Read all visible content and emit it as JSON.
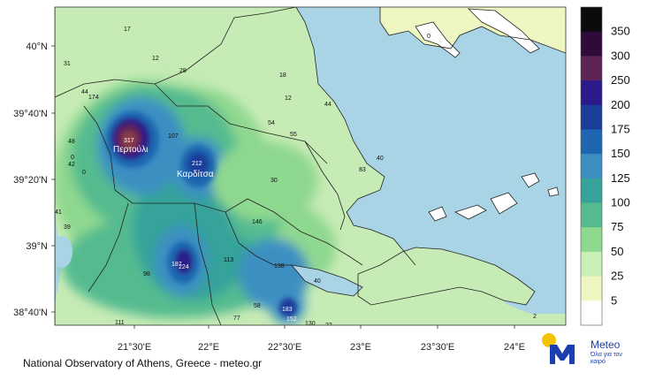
{
  "lat_labels": [
    "40°N",
    "39°40'N",
    "39°20'N",
    "39°N",
    "38°40'N"
  ],
  "lon_labels": [
    "21°30'E",
    "22°E",
    "22°30'E",
    "23°E",
    "23°30'E",
    "24°E"
  ],
  "colorbar": {
    "labels": [
      "350",
      "300",
      "250",
      "200",
      "175",
      "150",
      "125",
      "100",
      "75",
      "50",
      "25",
      "5"
    ],
    "colors": [
      "#0b0b0b",
      "#2e0b3b",
      "#5f2456",
      "#2a1a8a",
      "#1b3e9a",
      "#1f66b0",
      "#3d8fc2",
      "#36a39a",
      "#55bb8f",
      "#8fd88f",
      "#c9efb7",
      "#eef6c2",
      "#ffffff"
    ]
  },
  "places": {
    "pertouli": "Περτούλι",
    "karditsa": "Καρδίτσα"
  },
  "values": {
    "v17": "17",
    "v12": "12",
    "v28": "28",
    "v31": "31",
    "v18": "18",
    "v44a": "44",
    "v174": "174",
    "v12b": "12",
    "v44b": "44",
    "v317": "317",
    "v107": "107",
    "v48": "48",
    "v0a": "0",
    "v42": "42",
    "v54": "54",
    "v55": "55",
    "v212": "212",
    "v0b": "0",
    "v40": "40",
    "v83": "83",
    "v30": "30",
    "v41": "41",
    "v146": "146",
    "v39": "39",
    "v113": "113",
    "v187": "187",
    "v224": "224",
    "v98": "98",
    "v138": "138",
    "v40b": "40",
    "v58": "58",
    "v183": "183",
    "v77": "77",
    "v111": "111",
    "v130": "130",
    "v22": "22",
    "v152": "152",
    "v2": "2",
    "v0c": "0"
  },
  "credit": "National Observatory of Athens, Greece - meteo.gr",
  "logo": {
    "name": "Meteo",
    "tagline": "Όλα για τον καιρό"
  }
}
